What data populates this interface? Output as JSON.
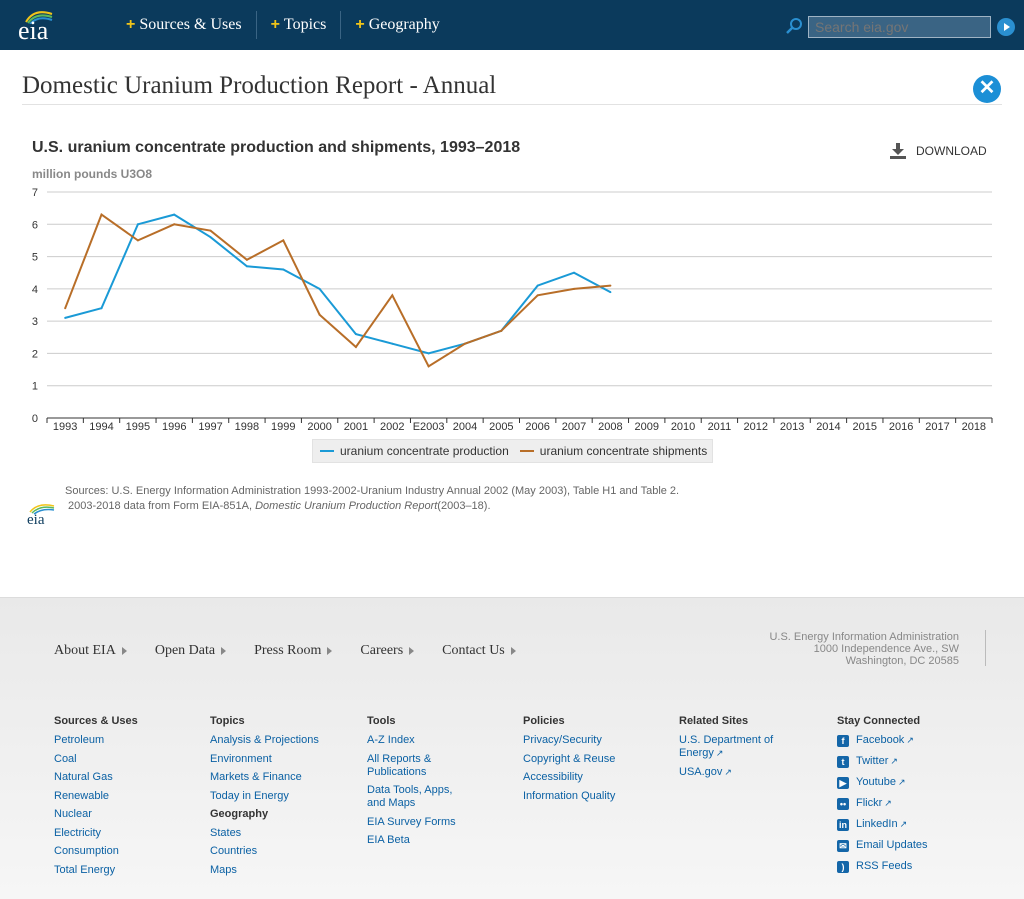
{
  "header": {
    "logo_text": "eia",
    "nav": [
      "Sources & Uses",
      "Topics",
      "Geography"
    ],
    "search_placeholder": "Search eia.gov"
  },
  "page": {
    "title": "Domestic Uranium Production Report - Annual"
  },
  "chart_meta": {
    "download_label": "DOWNLOAD"
  },
  "chart_data": {
    "type": "line",
    "title": "U.S. uranium concentrate production and shipments, 1993–2018",
    "ylabel": "million pounds U3O8",
    "ylim": [
      0,
      7
    ],
    "yticks": [
      "0",
      "1",
      "2",
      "3",
      "4",
      "5",
      "6",
      "7"
    ],
    "categories": [
      "1993",
      "1994",
      "1995",
      "1996",
      "1997",
      "1998",
      "1999",
      "2000",
      "2001",
      "2002",
      "E2003",
      "2004",
      "2005",
      "2006",
      "2007",
      "2008",
      "2009",
      "2010",
      "2011",
      "2012",
      "2013",
      "2014",
      "2015",
      "2016",
      "2017",
      "2018"
    ],
    "series": [
      {
        "name": "uranium concentrate production",
        "color": "#1a9ad6",
        "values": [
          3.1,
          3.4,
          6.0,
          6.3,
          5.6,
          4.7,
          4.6,
          4.0,
          2.6,
          2.3,
          2.0,
          2.3,
          2.7,
          4.1,
          4.5,
          3.9,
          null,
          null,
          null,
          null,
          null,
          null,
          null,
          null,
          null,
          null
        ]
      },
      {
        "name": "uranium concentrate shipments",
        "color": "#b86e28",
        "values": [
          3.4,
          6.3,
          5.5,
          6.0,
          5.8,
          4.9,
          5.5,
          3.2,
          2.2,
          3.8,
          1.6,
          2.3,
          2.7,
          3.8,
          4.0,
          4.1,
          null,
          null,
          null,
          null,
          null,
          null,
          null,
          null,
          null,
          null
        ]
      }
    ],
    "grid": true,
    "legend": "bottom-center"
  },
  "sources": {
    "line1": "Sources: U.S. Energy Information Administration 1993-2002-Uranium Industry Annual 2002 (May 2003), Table H1 and Table 2.",
    "line2_a": "2003-2018 data from Form EIA-851A, ",
    "line2_italic": "Domestic Uranium Production Report",
    "line2_b": "(2003–18)."
  },
  "footer": {
    "nav": [
      "About EIA",
      "Open Data",
      "Press Room",
      "Careers",
      "Contact Us"
    ],
    "address": [
      "U.S. Energy Information Administration",
      "1000 Independence Ave., SW",
      "Washington, DC 20585"
    ],
    "columns": {
      "sources_uses": {
        "heading": "Sources & Uses",
        "links": [
          "Petroleum",
          "Coal",
          "Natural Gas",
          "Renewable",
          "Nuclear",
          "Electricity",
          "Consumption",
          "Total Energy"
        ]
      },
      "topics": {
        "heading": "Topics",
        "links": [
          "Analysis & Projections",
          "Environment",
          "Markets & Finance",
          "Today in Energy"
        ],
        "sub_heading": "Geography",
        "sub_links": [
          "States",
          "Countries",
          "Maps"
        ]
      },
      "tools": {
        "heading": "Tools",
        "links": [
          "A-Z Index",
          "All Reports & Publications",
          "Data Tools, Apps, and Maps",
          "EIA Survey Forms",
          "EIA Beta"
        ]
      },
      "policies": {
        "heading": "Policies",
        "links": [
          "Privacy/Security",
          "Copyright & Reuse",
          "Accessibility",
          "Information Quality"
        ]
      },
      "related": {
        "heading": "Related Sites",
        "links": [
          "U.S. Department of Energy",
          "USA.gov"
        ]
      },
      "stay": {
        "heading": "Stay Connected",
        "links": [
          "Facebook",
          "Twitter",
          "Youtube",
          "Flickr",
          "LinkedIn",
          "Email Updates",
          "RSS Feeds"
        ]
      }
    }
  }
}
